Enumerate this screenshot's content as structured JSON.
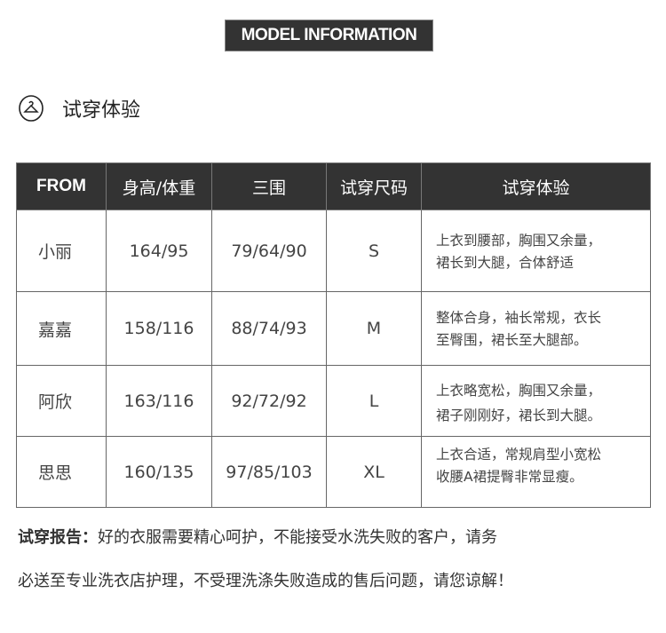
{
  "banner": "MODEL INFORMATION",
  "section": {
    "icon": "hanger-icon",
    "title": "试穿体验"
  },
  "table": {
    "headers": [
      "FROM",
      "身高/体重",
      "三围",
      "试穿尺码",
      "试穿体验"
    ],
    "rows": [
      {
        "name": "小丽",
        "hw": "164/95",
        "bwh": "79/64/90",
        "size": "S",
        "exp1": "上衣到腰部，胸围又余量，",
        "exp2": "裙长到大腿，合体舒适"
      },
      {
        "name": "嘉嘉",
        "hw": "158/116",
        "bwh": "88/74/93",
        "size": "M",
        "exp1": "整体合身，袖长常规，衣长",
        "exp2": "至臀围，裙长至大腿部。"
      },
      {
        "name": "阿欣",
        "hw": "163/116",
        "bwh": "92/72/92",
        "size": "L",
        "exp1": "上衣略宽松，胸围又余量，",
        "exp2": "裙子刚刚好，裙长到大腿。"
      },
      {
        "name": "思思",
        "hw": "160/135",
        "bwh": "97/85/103",
        "size": "XL",
        "exp1": "上衣合适，常规肩型小宽松",
        "exp2": "收腰A裙提臀非常显瘦。"
      }
    ]
  },
  "note": {
    "label": "试穿报告：",
    "line1": "好的衣服需要精心呵护，不能接受水洗失败的客户，请务",
    "line2": "必送至专业洗衣店护理，不受理洗涤失败造成的售后问题，请您谅解！"
  }
}
